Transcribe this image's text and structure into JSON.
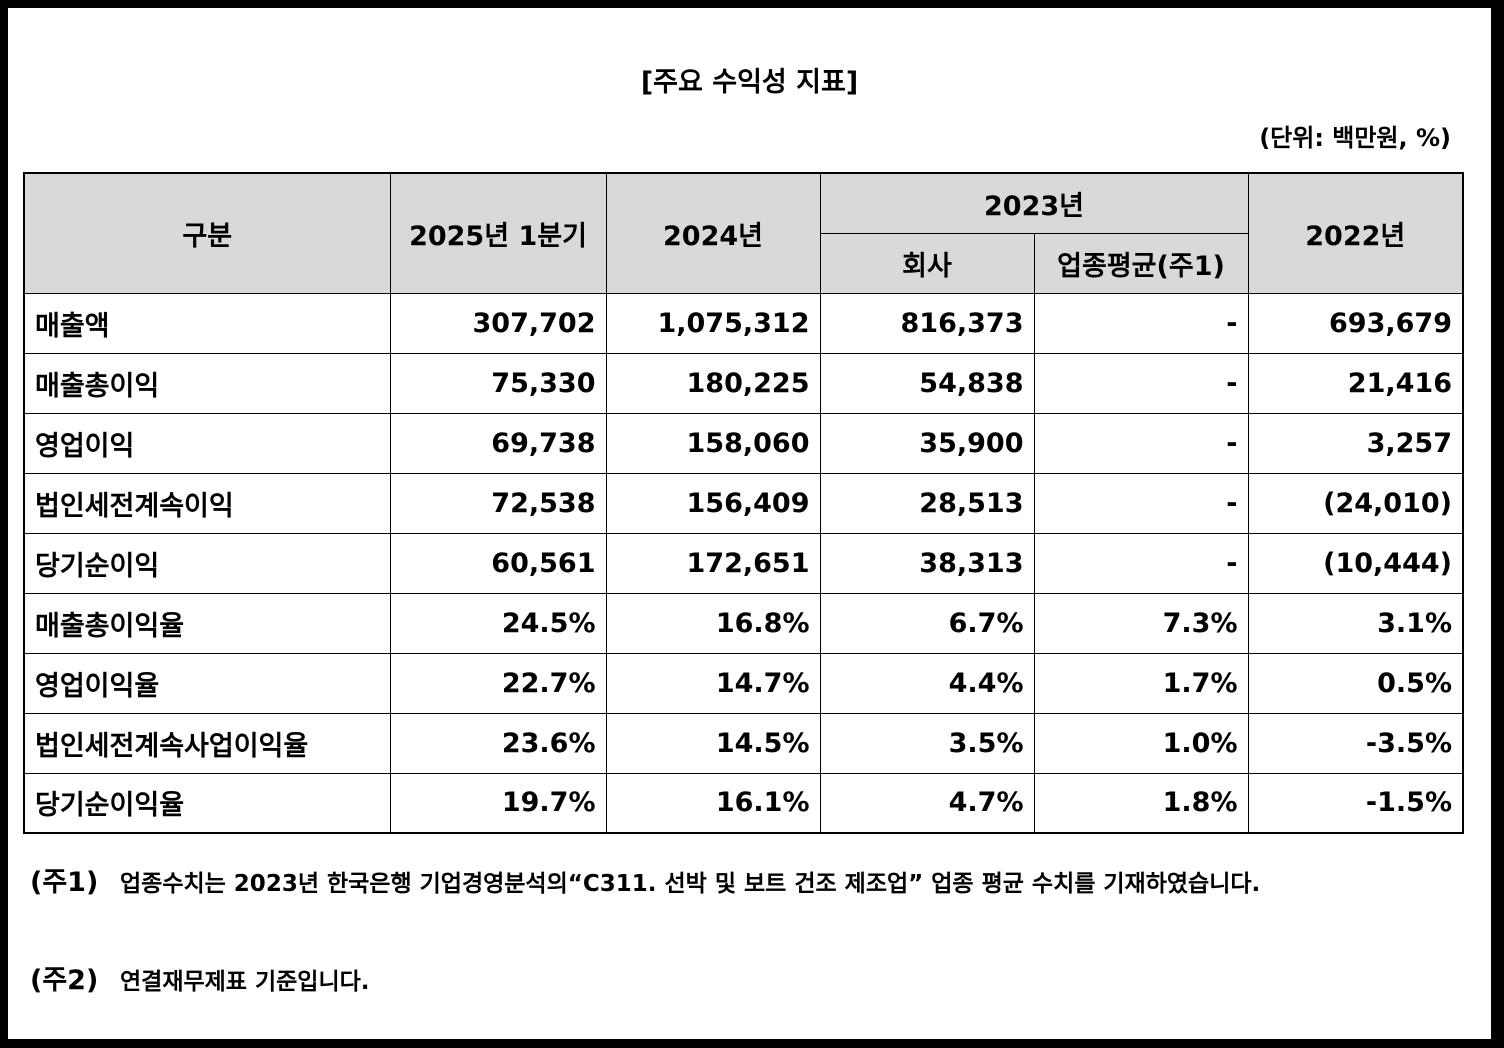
{
  "title": "[주요 수익성 지표]",
  "unit": "(단위: 백만원, %)",
  "headers": {
    "category": "구분",
    "q1_2025": "2025년 1분기",
    "y2024": "2024년",
    "y2023": "2023년",
    "company": "회사",
    "industry_avg": "업종평균(주1)",
    "y2022": "2022년"
  },
  "rows": [
    {
      "label": "매출액",
      "q1_2025": "307,702",
      "y2024": "1,075,312",
      "company": "816,373",
      "industry": "-",
      "y2022": "693,679"
    },
    {
      "label": "매출총이익",
      "q1_2025": "75,330",
      "y2024": "180,225",
      "company": "54,838",
      "industry": "-",
      "y2022": "21,416"
    },
    {
      "label": "영업이익",
      "q1_2025": "69,738",
      "y2024": "158,060",
      "company": "35,900",
      "industry": "-",
      "y2022": "3,257"
    },
    {
      "label": "법인세전계속이익",
      "q1_2025": "72,538",
      "y2024": "156,409",
      "company": "28,513",
      "industry": "-",
      "y2022": "(24,010)"
    },
    {
      "label": "당기순이익",
      "q1_2025": "60,561",
      "y2024": "172,651",
      "company": "38,313",
      "industry": "-",
      "y2022": "(10,444)"
    },
    {
      "label": "매출총이익율",
      "q1_2025": "24.5%",
      "y2024": "16.8%",
      "company": "6.7%",
      "industry": "7.3%",
      "y2022": "3.1%"
    },
    {
      "label": "영업이익율",
      "q1_2025": "22.7%",
      "y2024": "14.7%",
      "company": "4.4%",
      "industry": "1.7%",
      "y2022": "0.5%"
    },
    {
      "label": "법인세전계속사업이익율",
      "q1_2025": "23.6%",
      "y2024": "14.5%",
      "company": "3.5%",
      "industry": "1.0%",
      "y2022": "-3.5%"
    },
    {
      "label": "당기순이익율",
      "q1_2025": "19.7%",
      "y2024": "16.1%",
      "company": "4.7%",
      "industry": "1.8%",
      "y2022": "-1.5%"
    }
  ],
  "notes": [
    {
      "tag": "(주1)",
      "text": "업종수치는 2023년 한국은행 기업경영분석의“C311. 선박 및 보트 건조 제조업” 업종 평균 수치를 기재하였습니다."
    },
    {
      "tag": "(주2)",
      "text": "연결재무제표 기준입니다."
    }
  ]
}
